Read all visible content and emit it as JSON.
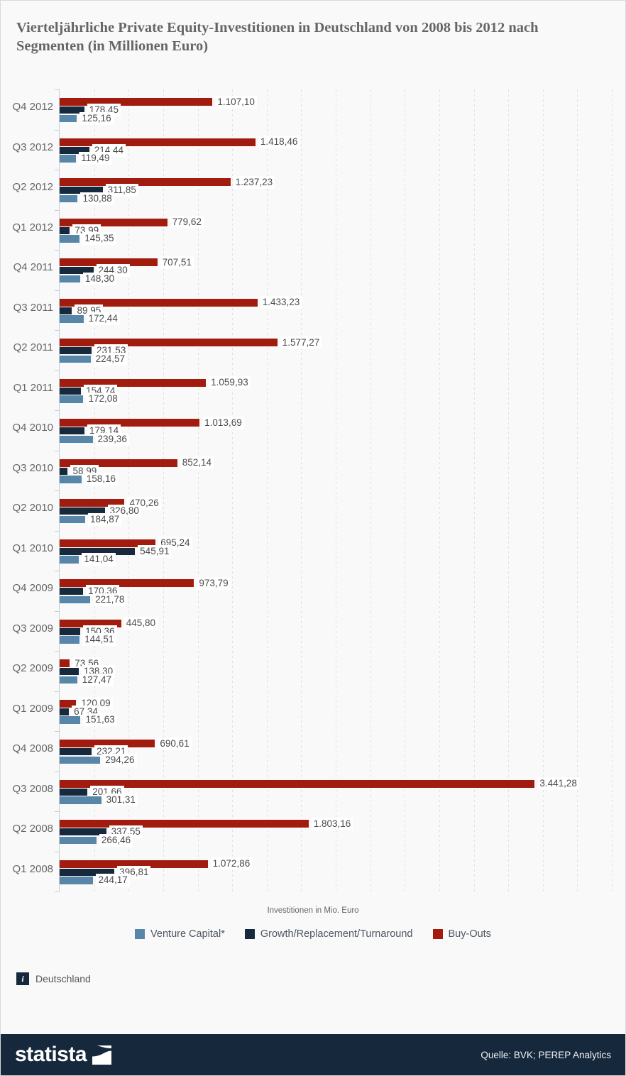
{
  "title": "Vierteljährliche Private Equity-Investitionen in Deutschland von 2008 bis 2012 nach Segmenten (in Millionen Euro)",
  "chart_data": {
    "type": "bar",
    "orientation": "horizontal",
    "title": "Vierteljährliche Private Equity-Investitionen in Deutschland von 2008 bis 2012 nach Segmenten (in Millionen Euro)",
    "xlabel": "Investitionen in Mio. Euro",
    "xlim": [
      0,
      4000
    ],
    "grid_interval": 250,
    "grid": "vertical-dashed",
    "legend_position": "bottom",
    "categories": [
      "Q4 2012",
      "Q3 2012",
      "Q2 2012",
      "Q1 2012",
      "Q4 2011",
      "Q3 2011",
      "Q2 2011",
      "Q1 2011",
      "Q4 2010",
      "Q3 2010",
      "Q2 2010",
      "Q1 2010",
      "Q4 2009",
      "Q3 2009",
      "Q2 2009",
      "Q1 2009",
      "Q4 2008",
      "Q3 2008",
      "Q2 2008",
      "Q1 2008"
    ],
    "series": [
      {
        "name": "Buy-Outs",
        "color": "#a11c0e",
        "values": [
          1107.1,
          1418.46,
          1237.23,
          779.62,
          707.51,
          1433.23,
          1577.27,
          1059.93,
          1013.69,
          852.14,
          470.26,
          695.24,
          973.79,
          445.8,
          73.56,
          120.09,
          690.61,
          3441.28,
          1803.16,
          1072.86
        ],
        "labels": [
          "1.107,10",
          "1.418,46",
          "1.237,23",
          "779,62",
          "707,51",
          "1.433,23",
          "1.577,27",
          "1.059,93",
          "1.013,69",
          "852,14",
          "470,26",
          "695,24",
          "973,79",
          "445,80",
          "73,56",
          "120,09",
          "690,61",
          "3.441,28",
          "1.803,16",
          "1.072,86"
        ]
      },
      {
        "name": "Growth/Replacement/Turnaround",
        "color": "#17293c",
        "values": [
          178.45,
          214.44,
          311.85,
          73.99,
          244.3,
          89.95,
          231.53,
          154.74,
          179.14,
          58.99,
          326.8,
          545.91,
          170.36,
          150.36,
          138.3,
          67.34,
          232.21,
          201.66,
          337.55,
          396.81
        ],
        "labels": [
          "178,45",
          "214,44",
          "311,85",
          "73,99",
          "244,30",
          "89,95",
          "231,53",
          "154,74",
          "179,14",
          "58,99",
          "326,80",
          "545,91",
          "170,36",
          "150,36",
          "138,30",
          "67,34",
          "232,21",
          "201,66",
          "337,55",
          "396,81"
        ]
      },
      {
        "name": "Venture Capital*",
        "color": "#5886a9",
        "values": [
          125.16,
          119.49,
          130.88,
          145.35,
          148.3,
          172.44,
          224.57,
          172.08,
          239.36,
          158.16,
          184.87,
          141.04,
          221.78,
          144.51,
          127.47,
          151.63,
          294.26,
          301.31,
          266.46,
          244.17
        ],
        "labels": [
          "125,16",
          "119,49",
          "130,88",
          "145,35",
          "148,30",
          "172,44",
          "224,57",
          "172,08",
          "239,36",
          "158,16",
          "184,87",
          "141,04",
          "221,78",
          "144,51",
          "127,47",
          "151,63",
          "294,26",
          "301,31",
          "266,46",
          "244,17"
        ]
      }
    ]
  },
  "legend": {
    "items": [
      {
        "label": "Venture Capital*",
        "color": "#5886a9"
      },
      {
        "label": "Growth/Replacement/Turnaround",
        "color": "#17293c"
      },
      {
        "label": "Buy-Outs",
        "color": "#a11c0e"
      }
    ]
  },
  "note": {
    "icon": "i",
    "label": "Deutschland"
  },
  "footer": {
    "brand": "statista",
    "source": "Quelle: BVK; PEREP Analytics"
  },
  "colors": {
    "background": "#f9f9f9",
    "footer_bar": "#16283c",
    "axis": "#c3ced8",
    "grid": "#e0e0e0",
    "text": "#666666",
    "value_label": "#4a4a4a"
  }
}
